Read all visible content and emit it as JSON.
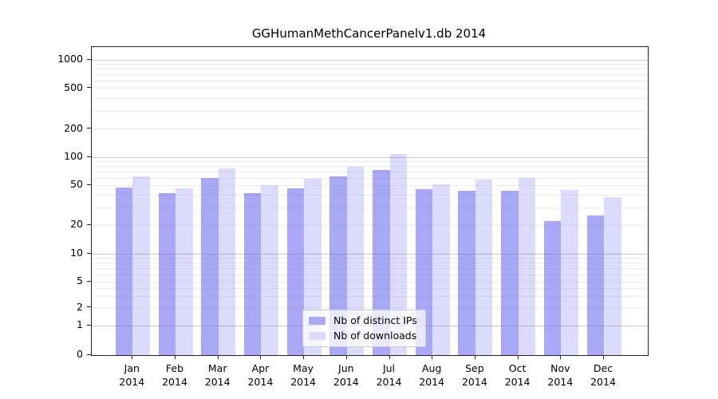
{
  "title": "GGHumanMethCancerPanelv1.db 2014",
  "colors": {
    "bar_distinct_ips": "rgba(110,110,242,0.60)",
    "bar_downloads": "rgba(110,110,242,0.25)",
    "legend_swatch_distinct_ips": "#a9a9f6",
    "legend_swatch_downloads": "#dcdcfa",
    "grid_major": "#c9c9c9",
    "grid_minor": "#ececec",
    "axis_frame": "#222222"
  },
  "legend": {
    "items": [
      {
        "label": "Nb of distinct IPs",
        "series_key": "distinct_ips"
      },
      {
        "label": "Nb of downloads",
        "series_key": "downloads"
      }
    ]
  },
  "chart_data": {
    "type": "bar",
    "title": "GGHumanMethCancerPanelv1.db 2014",
    "categories": [
      "Jan 2014",
      "Feb 2014",
      "Mar 2014",
      "Apr 2014",
      "May 2014",
      "Jun 2014",
      "Jul 2014",
      "Aug 2014",
      "Sep 2014",
      "Oct 2014",
      "Nov 2014",
      "Dec 2014"
    ],
    "series": [
      {
        "name": "Nb of distinct IPs",
        "values": [
          48,
          42,
          60,
          42,
          47,
          63,
          73,
          46,
          44,
          44,
          22,
          25
        ]
      },
      {
        "name": "Nb of downloads",
        "values": [
          63,
          47,
          76,
          50,
          59,
          80,
          110,
          51,
          58,
          60,
          45,
          38
        ]
      }
    ],
    "xlabel": "",
    "ylabel": "",
    "yscale": "symlog",
    "yticks": [
      0,
      1,
      2,
      5,
      10,
      20,
      50,
      100,
      200,
      500,
      1000
    ],
    "ylim": [
      0,
      1200
    ],
    "grid": true,
    "legend_position": "lower center"
  }
}
